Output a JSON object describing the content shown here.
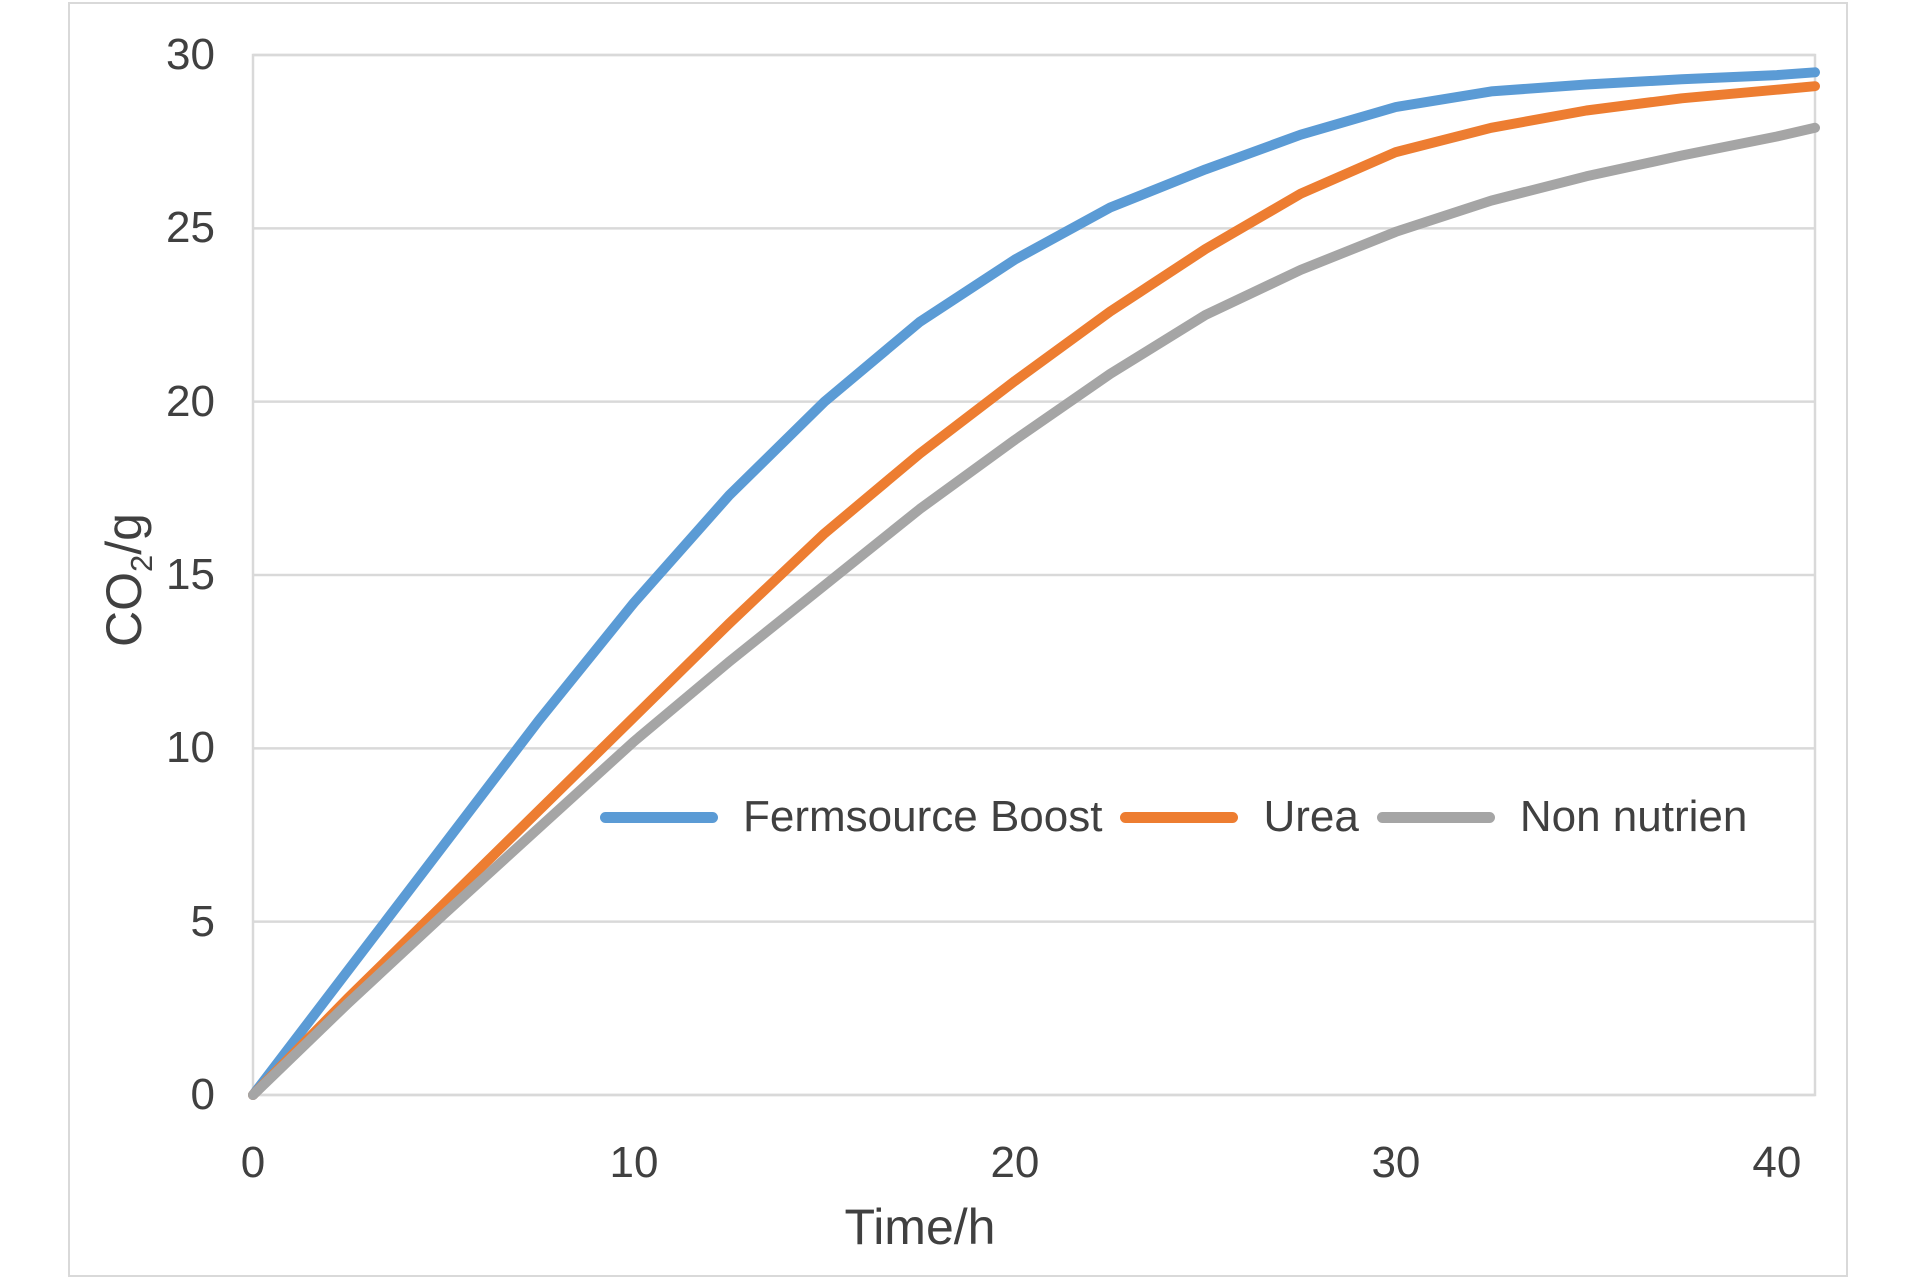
{
  "chart_data": {
    "type": "line",
    "title": "",
    "xlabel": "Time/h",
    "ylabel": "CO2/g",
    "ylabel_parts": [
      "CO",
      "2",
      "/g"
    ],
    "xlim": [
      0,
      41
    ],
    "ylim": [
      0,
      30
    ],
    "xticks": [
      0,
      10,
      20,
      30,
      40
    ],
    "yticks": [
      30,
      25,
      20,
      15,
      10,
      5,
      0
    ],
    "grid": "horizontal-only",
    "legend_position": "inside-lower-middle",
    "x": [
      0,
      2.5,
      5,
      7.5,
      10,
      12.5,
      15,
      17.5,
      20,
      22.5,
      25,
      27.5,
      30,
      32.5,
      35,
      37.5,
      40,
      41
    ],
    "series": [
      {
        "name": "Fermsource Boost",
        "color": "#5B9BD5",
        "values": [
          0,
          3.6,
          7.2,
          10.8,
          14.2,
          17.3,
          20.0,
          22.3,
          24.1,
          25.6,
          26.7,
          27.7,
          28.5,
          28.95,
          29.15,
          29.3,
          29.42,
          29.5
        ]
      },
      {
        "name": "Urea",
        "color": "#ED7D31",
        "values": [
          0,
          2.8,
          5.5,
          8.2,
          10.9,
          13.6,
          16.2,
          18.5,
          20.6,
          22.6,
          24.4,
          26.0,
          27.2,
          27.9,
          28.4,
          28.75,
          29.0,
          29.1
        ]
      },
      {
        "name": "Non nutrien",
        "color": "#A5A5A5",
        "values": [
          0,
          2.65,
          5.2,
          7.7,
          10.2,
          12.5,
          14.7,
          16.9,
          18.9,
          20.8,
          22.5,
          23.8,
          24.9,
          25.8,
          26.5,
          27.1,
          27.65,
          27.9
        ]
      }
    ],
    "colors": {
      "grid": "#D9D9D9",
      "plot_border": "#D9D9D9",
      "frame_border": "#D9D9D9",
      "text": "#404040",
      "background": "#FFFFFF"
    }
  }
}
